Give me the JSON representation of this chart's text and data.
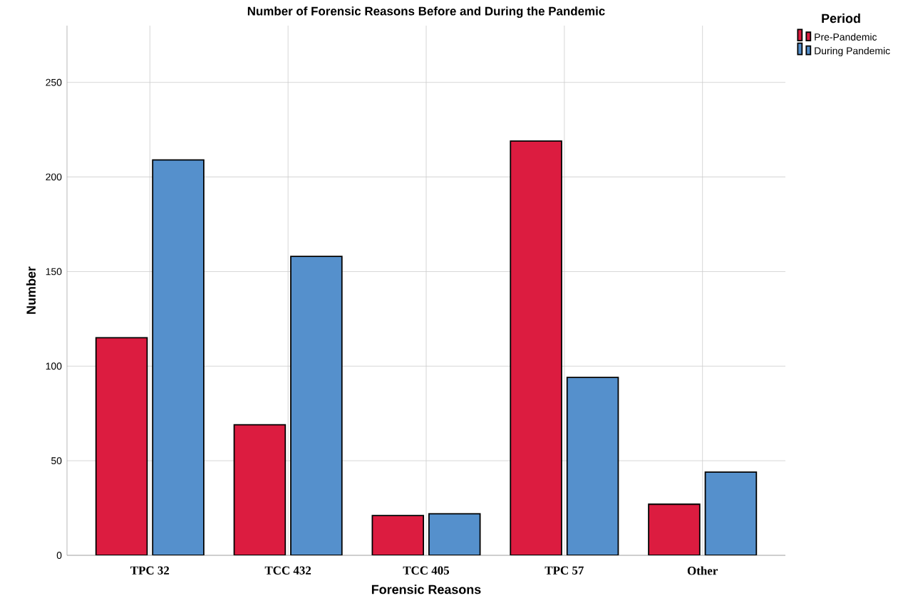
{
  "chart_data": {
    "type": "bar",
    "title": "Number of Forensic Reasons Before and During the Pandemic",
    "xlabel": "Forensic Reasons",
    "ylabel": "Number",
    "legend_title": "Period",
    "categories": [
      "TPC 32",
      "TCC 432",
      "TCC 405",
      "TPC 57",
      "Other"
    ],
    "series": [
      {
        "name": "Pre-Pandemic",
        "color": "#dc1c40",
        "values": [
          115,
          69,
          21,
          219,
          27
        ]
      },
      {
        "name": "During Pandemic",
        "color": "#5590cc",
        "values": [
          209,
          158,
          22,
          94,
          44
        ]
      }
    ],
    "ylim": [
      0,
      280
    ],
    "yticks": [
      0,
      50,
      100,
      150,
      200,
      250
    ],
    "grid": true,
    "legend": "top right"
  }
}
